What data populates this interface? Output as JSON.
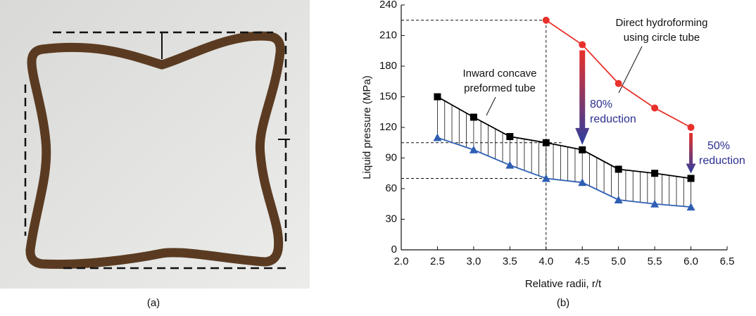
{
  "panel_labels": [
    "(a)",
    "(b)"
  ],
  "chart_data": {
    "type": "line",
    "x_label": "Relative radii, r/t",
    "y_label": "Liquid pressure (MPa)",
    "xlim": [
      2.0,
      6.5
    ],
    "xticks": [
      {
        "value": 2.0,
        "label": "2.0"
      },
      {
        "value": 2.5,
        "label": "2.5"
      },
      {
        "value": 3.0,
        "label": "3.0"
      },
      {
        "value": 3.5,
        "label": "3.5"
      },
      {
        "value": 4.0,
        "label": "4.0"
      },
      {
        "value": 4.5,
        "label": "4.5"
      },
      {
        "value": 5.0,
        "label": "5.0"
      },
      {
        "value": 5.5,
        "label": "5.5"
      },
      {
        "value": 6.0,
        "label": "6.0"
      },
      {
        "value": 6.5,
        "label": "6.5"
      }
    ],
    "ylim": [
      0,
      240
    ],
    "yticks": [
      0,
      30,
      60,
      90,
      120,
      150,
      180,
      210,
      240
    ],
    "series": [
      {
        "color": "#e8312b",
        "marker": "circle",
        "x": [
          4.0,
          4.5,
          5.0,
          5.5,
          6.0
        ],
        "values": [
          225,
          201,
          163,
          139,
          120
        ]
      },
      {
        "color": "#000000",
        "marker": "square",
        "x": [
          2.5,
          3.0,
          3.5,
          4.0,
          4.5,
          5.0,
          5.5,
          6.0
        ],
        "values": [
          150,
          130,
          111,
          105,
          98,
          79,
          75,
          70
        ]
      },
      {
        "color": "#2f5fb3",
        "marker": "triangle",
        "x": [
          2.5,
          3.0,
          3.5,
          4.0,
          4.5,
          5.0,
          5.5,
          6.0
        ],
        "values": [
          110,
          98,
          83,
          70,
          66,
          49,
          45,
          42
        ]
      }
    ],
    "annotations": [
      {
        "lines": [
          "Inward concave",
          "preformed tube"
        ]
      },
      {
        "lines": [
          "Direct hydroforming",
          "using circle tube"
        ]
      },
      {
        "lines": [
          "80%",
          "reduction"
        ]
      },
      {
        "lines": [
          "50%",
          "reduction"
        ]
      }
    ]
  }
}
